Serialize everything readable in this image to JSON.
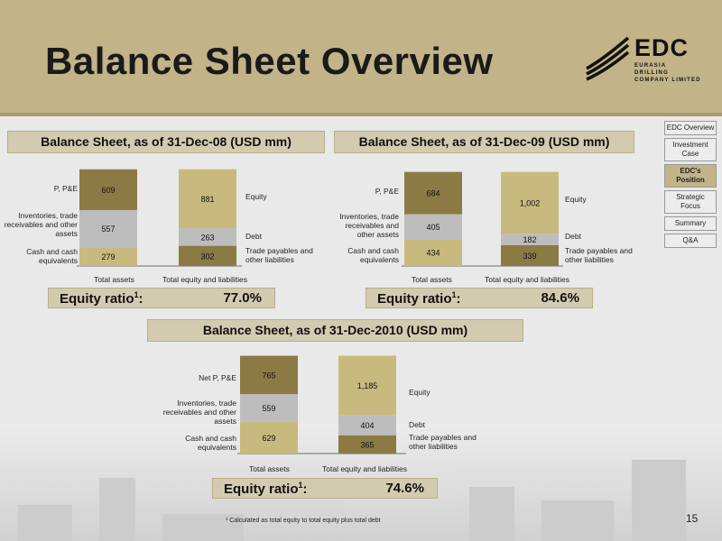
{
  "title": "Balance Sheet Overview",
  "logo": {
    "name": "EDC",
    "subtitle_line1": "EURASIA DRILLING",
    "subtitle_line2": "COMPANY LIMITED"
  },
  "nav": {
    "items": [
      {
        "label": "EDC Overview",
        "active": false
      },
      {
        "label": "Investment Case",
        "active": false
      },
      {
        "label": "EDC's Position",
        "active": true
      },
      {
        "label": "Strategic Focus",
        "active": false
      },
      {
        "label": "Summary",
        "active": false
      },
      {
        "label": "Q&A",
        "active": false
      }
    ]
  },
  "colors": {
    "header": "#c2b488",
    "dark_bar": "#8c7a45",
    "grey_bar": "#bdbdbd",
    "light_bar": "#c8b97e"
  },
  "charts": [
    {
      "title": "Balance Sheet, as of 31-Dec-08 (USD mm)",
      "ratio_label": "Equity ratio",
      "ratio_sup": "1",
      "ratio_colon": ":",
      "ratio_value": "77.0%",
      "assets_axis_label": "Total assets",
      "liab_axis_label": "Total equity and liabilities",
      "assets_labels": [
        "P, P&E",
        "Inventories, trade receivables and other assets",
        "Cash and cash equivalents"
      ],
      "liab_labels": [
        "Equity",
        "Debt",
        "Trade payables and other liabilities"
      ]
    },
    {
      "title": "Balance Sheet, as of 31-Dec-09 (USD mm)",
      "ratio_label": "Equity ratio",
      "ratio_sup": "1",
      "ratio_colon": ":",
      "ratio_value": "84.6%",
      "assets_axis_label": "Total assets",
      "liab_axis_label": "Total equity and liabilities",
      "assets_labels": [
        "P, P&E",
        "Inventories, trade receivables and other assets",
        "Cash and cash equivalents"
      ],
      "liab_labels": [
        "Equity",
        "Debt",
        "Trade payables and other liabilities"
      ]
    },
    {
      "title": "Balance Sheet, as of 31-Dec-2010 (USD mm)",
      "ratio_label": "Equity ratio",
      "ratio_sup": "1",
      "ratio_colon": ":",
      "ratio_value": "74.6%",
      "assets_axis_label": "Total assets",
      "liab_axis_label": "Total equity and liabilities",
      "assets_labels": [
        "Net P, P&E",
        "Inventories, trade receivables and other assets",
        "Cash and cash equivalents"
      ],
      "liab_labels": [
        "Equity",
        "Debt",
        "Trade payables and other liabilities"
      ]
    }
  ],
  "chart_data": [
    {
      "type": "bar",
      "categories": [
        "Total assets",
        "Total equity and liabilities"
      ],
      "series": [
        {
          "name": "Cash and cash equivalents",
          "stack": "assets",
          "values": [
            279,
            null
          ]
        },
        {
          "name": "Inventories, trade receivables and other assets",
          "stack": "assets",
          "values": [
            557,
            null
          ]
        },
        {
          "name": "P, P&E",
          "stack": "assets",
          "values": [
            609,
            null
          ]
        },
        {
          "name": "Trade payables and other liabilities",
          "stack": "liab",
          "values": [
            null,
            302
          ]
        },
        {
          "name": "Debt",
          "stack": "liab",
          "values": [
            null,
            263
          ]
        },
        {
          "name": "Equity",
          "stack": "liab",
          "values": [
            null,
            881
          ]
        }
      ],
      "stacked": true
    },
    {
      "type": "bar",
      "categories": [
        "Total assets",
        "Total equity and liabilities"
      ],
      "series": [
        {
          "name": "Cash and cash equivalents",
          "stack": "assets",
          "values": [
            434,
            null
          ]
        },
        {
          "name": "Inventories, trade receivables and other assets",
          "stack": "assets",
          "values": [
            405,
            null
          ]
        },
        {
          "name": "P, P&E",
          "stack": "assets",
          "values": [
            684,
            null
          ]
        },
        {
          "name": "Trade payables and other liabilities",
          "stack": "liab",
          "values": [
            null,
            339
          ]
        },
        {
          "name": "Debt",
          "stack": "liab",
          "values": [
            null,
            182
          ]
        },
        {
          "name": "Equity",
          "stack": "liab",
          "values": [
            null,
            1002
          ]
        }
      ],
      "stacked": true,
      "value_labels": {
        "Equity": "1,002"
      }
    },
    {
      "type": "bar",
      "categories": [
        "Total assets",
        "Total equity and liabilities"
      ],
      "series": [
        {
          "name": "Cash and cash equivalents",
          "stack": "assets",
          "values": [
            629,
            null
          ]
        },
        {
          "name": "Inventories, trade receivables and other assets",
          "stack": "assets",
          "values": [
            559,
            null
          ]
        },
        {
          "name": "Net P, P&E",
          "stack": "assets",
          "values": [
            765,
            null
          ]
        },
        {
          "name": "Trade payables and other liabilities",
          "stack": "liab",
          "values": [
            null,
            365
          ]
        },
        {
          "name": "Debt",
          "stack": "liab",
          "values": [
            null,
            404
          ]
        },
        {
          "name": "Equity",
          "stack": "liab",
          "values": [
            null,
            1185
          ]
        }
      ],
      "stacked": true,
      "value_labels": {
        "Equity": "1,185"
      }
    }
  ],
  "footnote": "¹ Calculated as total equity to total equity plus total debt",
  "page_number": "15"
}
